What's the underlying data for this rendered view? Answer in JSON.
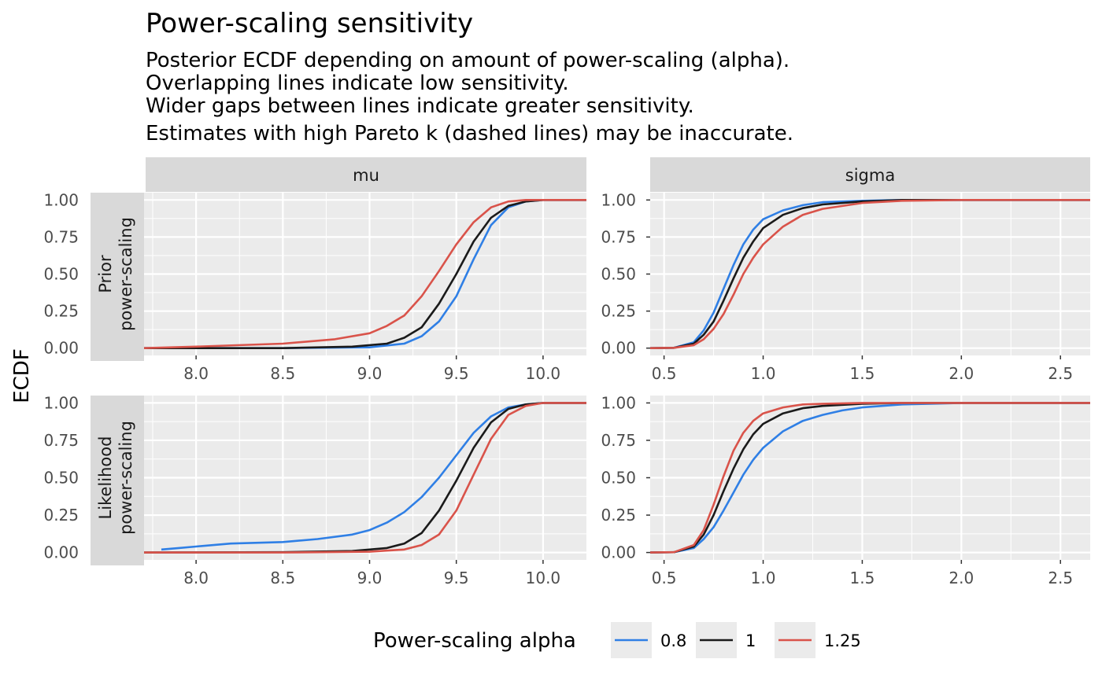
{
  "chart_data": {
    "type": "line",
    "title": "Power-scaling sensitivity",
    "subtitle": [
      "Posterior ECDF depending on amount of power-scaling (alpha).",
      "Overlapping lines indicate low sensitivity.",
      "Wider gaps between lines indicate greater sensitivity.",
      "Estimates with high Pareto k (dashed lines) may be inaccurate."
    ],
    "ylabel": "ECDF",
    "xlabel": "",
    "column_strips": [
      "mu",
      "sigma"
    ],
    "row_strips": [
      [
        "Prior",
        "power-scaling"
      ],
      [
        "Likelihood",
        "power-scaling"
      ]
    ],
    "legend": {
      "title": "Power-scaling alpha",
      "position": "bottom"
    },
    "grid": true,
    "ylim": [
      0,
      1
    ],
    "y_ticks": [
      0,
      0.25,
      0.5,
      0.75,
      1
    ],
    "y_tick_labels": [
      "0.00",
      "0.25",
      "0.50",
      "0.75",
      "1.00"
    ],
    "x_axes": {
      "mu": {
        "xlim": [
          7.7,
          10.25
        ],
        "ticks": [
          8.0,
          8.5,
          9.0,
          9.5,
          10.0
        ],
        "tick_labels": [
          "8.0",
          "8.5",
          "9.0",
          "9.5",
          "10.0"
        ]
      },
      "sigma": {
        "xlim": [
          0.43,
          2.65
        ],
        "ticks": [
          0.5,
          1.0,
          1.5,
          2.0,
          2.5
        ],
        "tick_labels": [
          "0.5",
          "1.0",
          "1.5",
          "2.0",
          "2.5"
        ]
      }
    },
    "series_styles": [
      {
        "name": "0.8",
        "color": "#2F7FE5"
      },
      {
        "name": "1",
        "color": "#1a1a1a"
      },
      {
        "name": "1.25",
        "color": "#D9534A"
      }
    ],
    "panels": [
      {
        "row": 0,
        "col": "mu",
        "series": [
          {
            "name": "0.8",
            "x": [
              7.7,
              8.5,
              9.0,
              9.2,
              9.3,
              9.4,
              9.5,
              9.6,
              9.7,
              9.8,
              9.9,
              10.0,
              10.25
            ],
            "y": [
              0,
              0,
              0.005,
              0.03,
              0.08,
              0.18,
              0.35,
              0.6,
              0.83,
              0.95,
              0.99,
              1.0,
              1.0
            ]
          },
          {
            "name": "1",
            "x": [
              7.7,
              8.5,
              8.9,
              9.1,
              9.2,
              9.3,
              9.4,
              9.5,
              9.6,
              9.7,
              9.8,
              9.9,
              10.0,
              10.25
            ],
            "y": [
              0,
              0,
              0.01,
              0.03,
              0.07,
              0.14,
              0.3,
              0.5,
              0.72,
              0.88,
              0.96,
              0.99,
              1.0,
              1.0
            ]
          },
          {
            "name": "1.25",
            "x": [
              7.7,
              8.0,
              8.5,
              8.8,
              9.0,
              9.1,
              9.2,
              9.3,
              9.4,
              9.5,
              9.6,
              9.7,
              9.8,
              9.9,
              10.0,
              10.25
            ],
            "y": [
              0,
              0.01,
              0.03,
              0.06,
              0.1,
              0.15,
              0.22,
              0.35,
              0.52,
              0.7,
              0.85,
              0.95,
              0.99,
              1.0,
              1.0,
              1.0
            ]
          }
        ]
      },
      {
        "row": 0,
        "col": "sigma",
        "series": [
          {
            "name": "0.8",
            "x": [
              0.43,
              0.55,
              0.65,
              0.7,
              0.75,
              0.8,
              0.85,
              0.9,
              0.95,
              1.0,
              1.1,
              1.2,
              1.3,
              1.5,
              1.7,
              2.65
            ],
            "y": [
              0,
              0.002,
              0.04,
              0.12,
              0.24,
              0.4,
              0.56,
              0.7,
              0.8,
              0.87,
              0.93,
              0.965,
              0.985,
              0.995,
              1.0,
              1.0
            ]
          },
          {
            "name": "1",
            "x": [
              0.43,
              0.55,
              0.65,
              0.7,
              0.75,
              0.8,
              0.85,
              0.9,
              0.95,
              1.0,
              1.1,
              1.2,
              1.3,
              1.5,
              1.7,
              2.65
            ],
            "y": [
              0,
              0.002,
              0.03,
              0.09,
              0.18,
              0.32,
              0.47,
              0.61,
              0.72,
              0.81,
              0.9,
              0.945,
              0.97,
              0.99,
              1.0,
              1.0
            ]
          },
          {
            "name": "1.25",
            "x": [
              0.43,
              0.55,
              0.65,
              0.7,
              0.75,
              0.8,
              0.85,
              0.9,
              0.95,
              1.0,
              1.1,
              1.2,
              1.3,
              1.5,
              1.7,
              2.0,
              2.65
            ],
            "y": [
              0,
              0.002,
              0.02,
              0.06,
              0.13,
              0.23,
              0.36,
              0.5,
              0.61,
              0.7,
              0.82,
              0.9,
              0.94,
              0.98,
              0.995,
              1.0,
              1.0
            ]
          }
        ]
      },
      {
        "row": 1,
        "col": "mu",
        "series": [
          {
            "name": "0.8",
            "x": [
              7.8,
              7.9,
              8.0,
              8.2,
              8.5,
              8.7,
              8.9,
              9.0,
              9.1,
              9.2,
              9.3,
              9.4,
              9.5,
              9.6,
              9.7,
              9.8,
              9.9,
              10.0,
              10.25
            ],
            "y": [
              0.02,
              0.03,
              0.04,
              0.06,
              0.07,
              0.09,
              0.12,
              0.15,
              0.2,
              0.27,
              0.37,
              0.5,
              0.65,
              0.8,
              0.91,
              0.97,
              0.99,
              1.0,
              1.0
            ]
          },
          {
            "name": "1",
            "x": [
              7.7,
              8.5,
              8.9,
              9.1,
              9.2,
              9.3,
              9.4,
              9.5,
              9.6,
              9.7,
              9.8,
              9.9,
              10.0,
              10.25
            ],
            "y": [
              0,
              0.002,
              0.01,
              0.03,
              0.06,
              0.13,
              0.28,
              0.48,
              0.7,
              0.87,
              0.96,
              0.99,
              1.0,
              1.0
            ]
          },
          {
            "name": "1.25",
            "x": [
              7.7,
              8.5,
              9.0,
              9.2,
              9.3,
              9.4,
              9.5,
              9.6,
              9.7,
              9.8,
              9.9,
              10.0,
              10.25
            ],
            "y": [
              0,
              0,
              0.005,
              0.02,
              0.05,
              0.12,
              0.28,
              0.52,
              0.76,
              0.92,
              0.98,
              1.0,
              1.0
            ]
          }
        ]
      },
      {
        "row": 1,
        "col": "sigma",
        "series": [
          {
            "name": "0.8",
            "x": [
              0.43,
              0.55,
              0.65,
              0.7,
              0.75,
              0.8,
              0.85,
              0.9,
              0.95,
              1.0,
              1.1,
              1.2,
              1.3,
              1.4,
              1.5,
              1.7,
              2.0,
              2.65
            ],
            "y": [
              0,
              0.002,
              0.03,
              0.09,
              0.17,
              0.28,
              0.4,
              0.52,
              0.62,
              0.7,
              0.81,
              0.88,
              0.92,
              0.95,
              0.97,
              0.99,
              1.0,
              1.0
            ]
          },
          {
            "name": "1",
            "x": [
              0.43,
              0.55,
              0.65,
              0.7,
              0.75,
              0.8,
              0.85,
              0.9,
              0.95,
              1.0,
              1.1,
              1.2,
              1.3,
              1.5,
              1.7,
              2.65
            ],
            "y": [
              0,
              0.002,
              0.04,
              0.12,
              0.25,
              0.41,
              0.56,
              0.69,
              0.79,
              0.86,
              0.93,
              0.965,
              0.98,
              0.995,
              1.0,
              1.0
            ]
          },
          {
            "name": "1.25",
            "x": [
              0.43,
              0.55,
              0.65,
              0.7,
              0.75,
              0.8,
              0.85,
              0.9,
              0.95,
              1.0,
              1.1,
              1.2,
              1.3,
              1.5,
              2.65
            ],
            "y": [
              0,
              0.002,
              0.05,
              0.15,
              0.32,
              0.51,
              0.68,
              0.8,
              0.88,
              0.93,
              0.97,
              0.99,
              0.995,
              1.0,
              1.0
            ]
          }
        ]
      }
    ]
  }
}
